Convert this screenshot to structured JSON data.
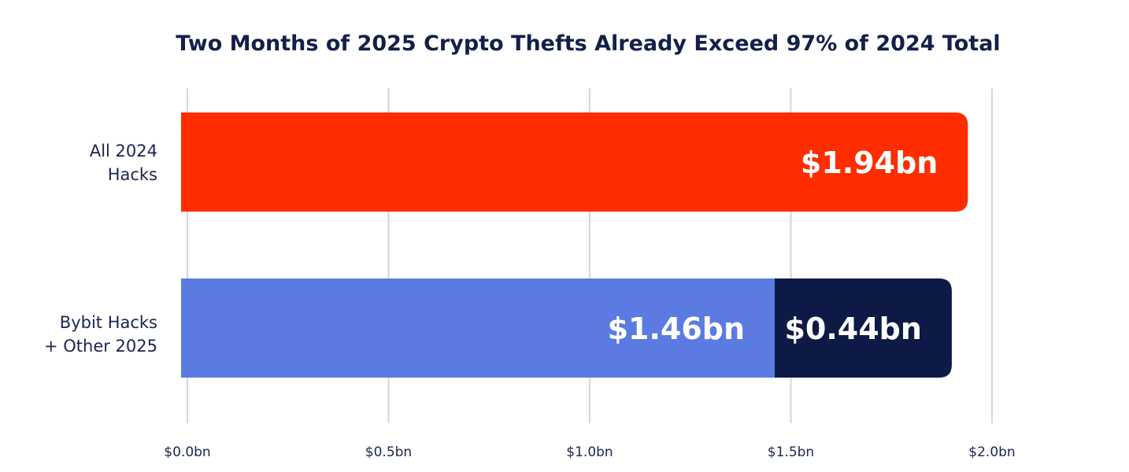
{
  "chart_data": {
    "type": "bar",
    "orientation": "horizontal",
    "stacked": true,
    "title": "Two Months of 2025 Crypto Thefts Already Exceed 97% of 2024 Total",
    "xlabel": "",
    "ylabel": "",
    "xlim": [
      0,
      2.0
    ],
    "grid": true,
    "legend": "none",
    "x_ticks": [
      {
        "value": 0.0,
        "label": "$0.0bn"
      },
      {
        "value": 0.5,
        "label": "$0.5bn"
      },
      {
        "value": 1.0,
        "label": "$1.0bn"
      },
      {
        "value": 1.5,
        "label": "$1.5bn"
      },
      {
        "value": 2.0,
        "label": "$2.0bn"
      }
    ],
    "categories": [
      {
        "label_lines": [
          "All 2024",
          "Hacks"
        ],
        "segments": [
          {
            "value": 1.94,
            "label": "$1.94bn",
            "color": "#ff2d00"
          }
        ]
      },
      {
        "label_lines": [
          "Bybit Hacks",
          "+ Other 2025"
        ],
        "segments": [
          {
            "value": 1.46,
            "label": "$1.46bn",
            "color": "#5b7be3"
          },
          {
            "value": 0.44,
            "label": "$0.44bn",
            "color": "#0d1a45"
          }
        ]
      }
    ]
  }
}
